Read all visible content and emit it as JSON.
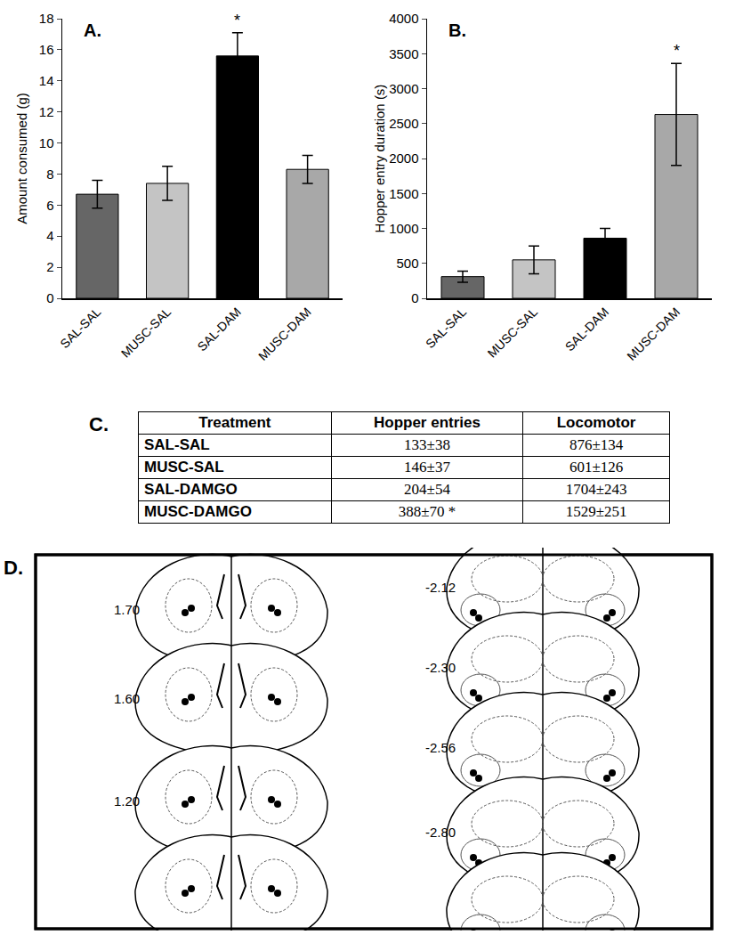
{
  "chart_data": [
    {
      "type": "bar",
      "title": "A.",
      "y_label": "Amount consumed (g)",
      "categories": [
        "SAL-SAL",
        "MUSC-SAL",
        "SAL-DAM",
        "MUSC-DAM"
      ],
      "values": [
        6.7,
        7.4,
        15.6,
        8.3
      ],
      "errors": [
        0.9,
        1.1,
        1.5,
        0.9
      ],
      "colors": [
        "#666666",
        "#c4c4c4",
        "#000000",
        "#a8a8a8"
      ],
      "ylim": [
        0,
        18
      ],
      "yticks": [
        0,
        2,
        4,
        6,
        8,
        10,
        12,
        14,
        16,
        18
      ],
      "grid": false,
      "annotations": [
        {
          "category": "SAL-DAM",
          "text": "*"
        }
      ]
    },
    {
      "type": "bar",
      "title": "B.",
      "y_label": "Hopper entry duration (s)",
      "categories": [
        "SAL-SAL",
        "MUSC-SAL",
        "SAL-DAM",
        "MUSC-DAM"
      ],
      "values": [
        310,
        550,
        860,
        2630
      ],
      "errors": [
        80,
        200,
        140,
        730
      ],
      "colors": [
        "#666666",
        "#c4c4c4",
        "#000000",
        "#a8a8a8"
      ],
      "ylim": [
        0,
        4000
      ],
      "yticks": [
        0,
        500,
        1000,
        1500,
        2000,
        2500,
        3000,
        3500,
        4000
      ],
      "grid": false,
      "annotations": [
        {
          "category": "MUSC-DAM",
          "text": "*"
        }
      ]
    }
  ],
  "table": {
    "label": "C.",
    "header": [
      "Treatment",
      "Hopper entries",
      "Locomotor"
    ],
    "rows": [
      [
        "SAL-SAL",
        "133±38",
        "876±134"
      ],
      [
        "MUSC-SAL",
        "146±37",
        "601±126"
      ],
      [
        "SAL-DAMGO",
        "204±54",
        "1704±243"
      ],
      [
        "MUSC-DAMGO",
        "388±70 *",
        "1529±251"
      ]
    ]
  },
  "panel_d": {
    "label": "D.",
    "left_sections": [
      "1.70",
      "1.60",
      "1.20"
    ],
    "right_sections": [
      "-2.12",
      "-2.30",
      "-2.56",
      "-2.80"
    ]
  }
}
